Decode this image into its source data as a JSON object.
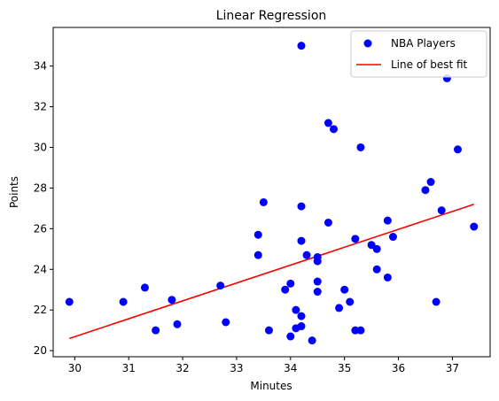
{
  "chart_data": {
    "type": "scatter",
    "title": "Linear Regression",
    "xlabel": "Minutes",
    "ylabel": "Points",
    "xlim": [
      29.6,
      37.7
    ],
    "ylim": [
      19.7,
      35.9
    ],
    "xticks": [
      30,
      31,
      32,
      33,
      34,
      35,
      36,
      37
    ],
    "yticks": [
      20,
      22,
      24,
      26,
      28,
      30,
      32,
      34
    ],
    "grid": false,
    "legend_position": "top-right",
    "series": [
      {
        "name": "NBA Players",
        "kind": "scatter",
        "color": "#0000ff",
        "points": [
          [
            29.9,
            22.4
          ],
          [
            30.9,
            22.4
          ],
          [
            31.3,
            23.1
          ],
          [
            31.5,
            21.0
          ],
          [
            31.8,
            22.5
          ],
          [
            31.9,
            21.3
          ],
          [
            32.7,
            23.2
          ],
          [
            32.8,
            21.4
          ],
          [
            33.4,
            25.7
          ],
          [
            33.4,
            24.7
          ],
          [
            33.5,
            27.3
          ],
          [
            33.6,
            21.0
          ],
          [
            33.9,
            23.0
          ],
          [
            34.0,
            23.3
          ],
          [
            34.0,
            20.7
          ],
          [
            34.1,
            22.0
          ],
          [
            34.1,
            21.1
          ],
          [
            34.2,
            35.0
          ],
          [
            34.2,
            27.1
          ],
          [
            34.2,
            25.4
          ],
          [
            34.2,
            21.7
          ],
          [
            34.2,
            21.2
          ],
          [
            34.3,
            24.7
          ],
          [
            34.4,
            20.5
          ],
          [
            34.5,
            24.6
          ],
          [
            34.5,
            24.4
          ],
          [
            34.5,
            23.4
          ],
          [
            34.5,
            22.9
          ],
          [
            34.7,
            31.2
          ],
          [
            34.7,
            26.3
          ],
          [
            34.8,
            30.9
          ],
          [
            34.9,
            22.1
          ],
          [
            35.0,
            23.0
          ],
          [
            35.1,
            22.4
          ],
          [
            35.2,
            25.5
          ],
          [
            35.2,
            21.0
          ],
          [
            35.3,
            30.0
          ],
          [
            35.3,
            21.0
          ],
          [
            35.5,
            25.2
          ],
          [
            35.6,
            25.0
          ],
          [
            35.6,
            24.0
          ],
          [
            35.8,
            26.4
          ],
          [
            35.8,
            23.6
          ],
          [
            35.9,
            25.6
          ],
          [
            36.5,
            27.9
          ],
          [
            36.6,
            28.3
          ],
          [
            36.7,
            22.4
          ],
          [
            36.8,
            26.9
          ],
          [
            36.9,
            33.4
          ],
          [
            37.1,
            29.9
          ],
          [
            37.4,
            26.1
          ]
        ]
      },
      {
        "name": "Line of best fit",
        "kind": "line",
        "color": "#ff0000",
        "points": [
          [
            29.9,
            20.6
          ],
          [
            37.4,
            27.2
          ]
        ]
      }
    ]
  }
}
